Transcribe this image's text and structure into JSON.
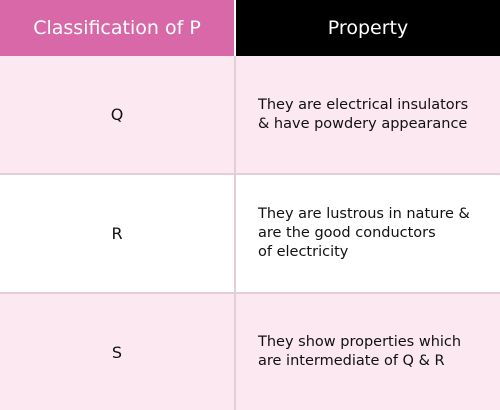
{
  "header": {
    "classification_label": "Classification of P",
    "property_label": "Property"
  },
  "rows": [
    {
      "classification": "Q",
      "property": "They are electrical insulators\n& have powdery appearance"
    },
    {
      "classification": "R",
      "property": "They are lustrous in nature &\nare the good conductors\nof electricity"
    },
    {
      "classification": "S",
      "property": "They show properties which\nare intermediate of Q & R"
    }
  ],
  "colors": {
    "header_left_bg": "#d868a8",
    "header_right_bg": "#000000",
    "row_pink_bg": "#fbe8f1",
    "row_white_bg": "#ffffff",
    "grid_line": "#e3cdd8"
  }
}
